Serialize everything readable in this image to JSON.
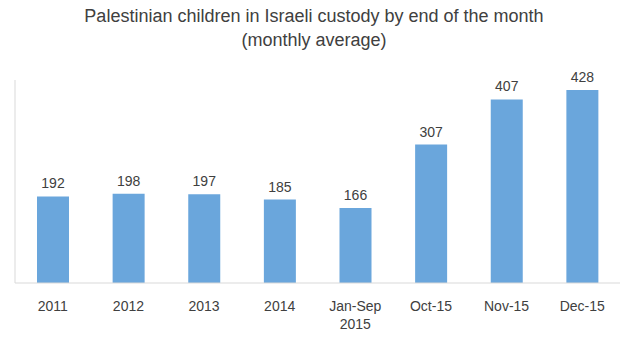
{
  "chart_data": {
    "type": "bar",
    "title": "Palestinian children in Israeli custody by end of the month",
    "subtitle": "(monthly average)",
    "categories": [
      "2011",
      "2012",
      "2013",
      "2014",
      "Jan-Sep 2015",
      "Oct-15",
      "Nov-15",
      "Dec-15"
    ],
    "values": [
      192,
      198,
      197,
      185,
      166,
      307,
      407,
      428
    ],
    "color": "#6aa6dc",
    "ylim": [
      0,
      450
    ],
    "grid": false,
    "data_labels": true,
    "tick_labels": "x"
  }
}
